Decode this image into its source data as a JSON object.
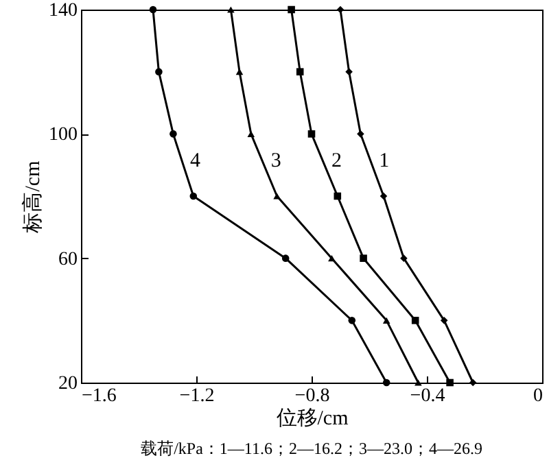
{
  "chart_data": {
    "type": "line",
    "xlabel": "位移/cm",
    "ylabel": "标高/cm",
    "annotations": [
      "载荷/kPa：1—11.6；2—16.2；3—23.0；4—26.9"
    ],
    "xlim": [
      -1.6,
      0
    ],
    "xticks": [
      -1.6,
      -1.2,
      -0.8,
      -0.4,
      0
    ],
    "ylim": [
      20,
      140
    ],
    "yticks": [
      20,
      60,
      100,
      140
    ],
    "grid": false,
    "series": [
      {
        "name": "1",
        "color": "#000000",
        "marker": "diamond",
        "x": [
          -0.7,
          -0.67,
          -0.63,
          -0.55,
          -0.48,
          -0.34,
          -0.24
        ],
        "values": [
          140,
          120,
          100,
          80,
          60,
          40,
          20
        ]
      },
      {
        "name": "2",
        "color": "#000000",
        "marker": "square",
        "x": [
          -0.87,
          -0.84,
          -0.8,
          -0.71,
          -0.62,
          -0.44,
          -0.32
        ],
        "values": [
          140,
          120,
          100,
          80,
          60,
          40,
          20
        ]
      },
      {
        "name": "3",
        "color": "#000000",
        "marker": "triangle",
        "x": [
          -1.08,
          -1.05,
          -1.01,
          -0.92,
          -0.73,
          -0.54,
          -0.43
        ],
        "values": [
          140,
          120,
          100,
          80,
          60,
          40,
          20
        ]
      },
      {
        "name": "4",
        "color": "#000000",
        "marker": "circle",
        "x": [
          -1.35,
          -1.33,
          -1.28,
          -1.21,
          -0.89,
          -0.66,
          -0.54
        ],
        "values": [
          140,
          120,
          100,
          80,
          60,
          40,
          20
        ]
      }
    ]
  }
}
